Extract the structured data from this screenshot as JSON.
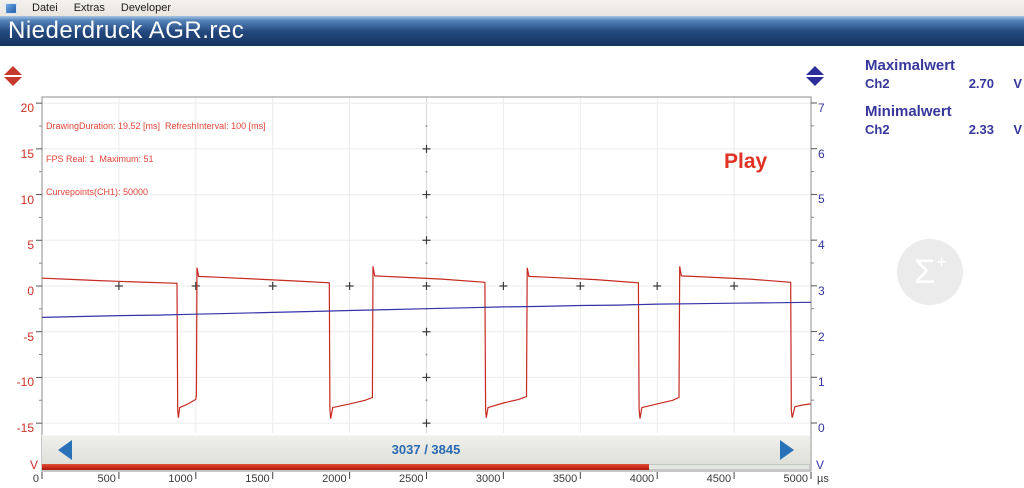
{
  "menu": {
    "items": [
      "Datei",
      "Extras",
      "Developer"
    ]
  },
  "title_bar": {
    "title": "Niederdruck AGR.rec"
  },
  "debug_overlay": {
    "line1": "DrawingDuration: 19.52 [ms]  RefreshInterval: 100 [ms]",
    "line2": "FPS Real: 1  Maximum: 51",
    "line3": "Curvepoints(CH1): 50000"
  },
  "play_label": "Play",
  "measurements": {
    "max": {
      "label": "Maximalwert",
      "channel": "Ch2",
      "value": "2.70",
      "unit": "V"
    },
    "min": {
      "label": "Minimalwert",
      "channel": "Ch2",
      "value": "2.33",
      "unit": "V"
    }
  },
  "sigma_button": {
    "label": "Σ",
    "superscript": "+"
  },
  "scrollbar": {
    "current": 3037,
    "total": 3845,
    "display": "3037 / 3845"
  },
  "chart_data": {
    "type": "line",
    "title": "",
    "x_unit": "µs",
    "x_range": [
      0,
      5000
    ],
    "x_ticks": [
      0,
      500,
      1000,
      1500,
      2000,
      2500,
      3000,
      3500,
      4000,
      4500,
      5000
    ],
    "left_axis": {
      "unit": "V",
      "ticks": [
        20,
        15,
        10,
        5,
        0,
        -5,
        -10,
        -15
      ],
      "range": [
        -15,
        20
      ],
      "color": "#cc3126"
    },
    "right_axis": {
      "unit": "V",
      "ticks": [
        7,
        6,
        5,
        4,
        3,
        2,
        1,
        0
      ],
      "range": [
        0,
        7
      ],
      "color": "#3434a0"
    },
    "grid": true,
    "series": [
      {
        "name": "CH1",
        "axis": "left",
        "color": "#c62a21",
        "points": [
          [
            0,
            0.85
          ],
          [
            150,
            0.75
          ],
          [
            350,
            0.6
          ],
          [
            600,
            0.45
          ],
          [
            878,
            0.3
          ],
          [
            882,
            -13.6
          ],
          [
            887,
            -14.4
          ],
          [
            895,
            -13.3
          ],
          [
            950,
            -12.9
          ],
          [
            1000,
            -12.4
          ],
          [
            1004,
            -11.9
          ],
          [
            1008,
            2.0
          ],
          [
            1018,
            1.05
          ],
          [
            1150,
            0.95
          ],
          [
            1400,
            0.75
          ],
          [
            1650,
            0.55
          ],
          [
            1868,
            0.35
          ],
          [
            1872,
            -13.5
          ],
          [
            1877,
            -14.5
          ],
          [
            1890,
            -13.3
          ],
          [
            2000,
            -12.9
          ],
          [
            2100,
            -12.5
          ],
          [
            2148,
            -12.2
          ],
          [
            2152,
            2.15
          ],
          [
            2163,
            1.1
          ],
          [
            2300,
            1.0
          ],
          [
            2600,
            0.75
          ],
          [
            2880,
            0.4
          ],
          [
            2884,
            -13.6
          ],
          [
            2889,
            -14.4
          ],
          [
            2900,
            -13.3
          ],
          [
            3000,
            -12.8
          ],
          [
            3100,
            -12.4
          ],
          [
            3150,
            -12.1
          ],
          [
            3155,
            2.0
          ],
          [
            3166,
            1.05
          ],
          [
            3300,
            0.95
          ],
          [
            3600,
            0.7
          ],
          [
            3878,
            0.35
          ],
          [
            3882,
            -13.5
          ],
          [
            3888,
            -14.5
          ],
          [
            3900,
            -13.3
          ],
          [
            4000,
            -12.9
          ],
          [
            4100,
            -12.5
          ],
          [
            4142,
            -12.2
          ],
          [
            4146,
            2.15
          ],
          [
            4157,
            1.1
          ],
          [
            4300,
            1.0
          ],
          [
            4600,
            0.75
          ],
          [
            4868,
            0.4
          ],
          [
            4872,
            -13.6
          ],
          [
            4878,
            -14.4
          ],
          [
            4895,
            -13.2
          ],
          [
            4950,
            -13.0
          ],
          [
            5000,
            -12.9
          ]
        ]
      },
      {
        "name": "CH2",
        "axis": "right",
        "color": "#3632a8",
        "points": [
          [
            0,
            2.31
          ],
          [
            250,
            2.33
          ],
          [
            500,
            2.35
          ],
          [
            750,
            2.36
          ],
          [
            1000,
            2.38
          ],
          [
            1250,
            2.4
          ],
          [
            1500,
            2.42
          ],
          [
            1750,
            2.44
          ],
          [
            2000,
            2.46
          ],
          [
            2250,
            2.48
          ],
          [
            2500,
            2.5
          ],
          [
            2750,
            2.52
          ],
          [
            3000,
            2.54
          ],
          [
            3250,
            2.55
          ],
          [
            3500,
            2.57
          ],
          [
            3750,
            2.58
          ],
          [
            4000,
            2.6
          ],
          [
            4250,
            2.61
          ],
          [
            4500,
            2.62
          ],
          [
            4750,
            2.63
          ],
          [
            5000,
            2.64
          ]
        ]
      }
    ]
  }
}
